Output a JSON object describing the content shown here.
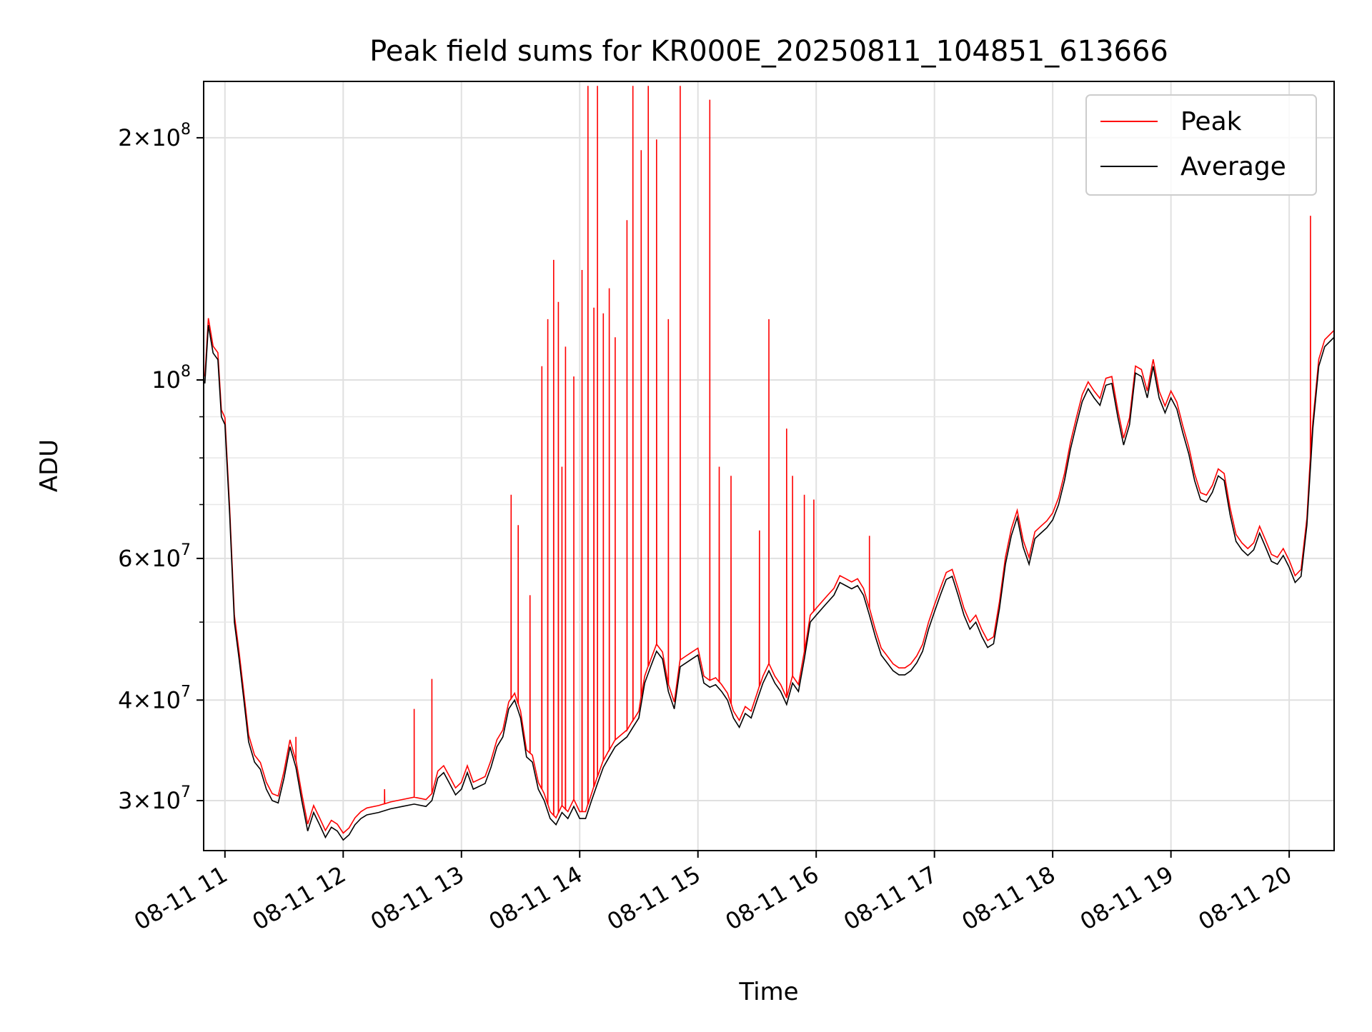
{
  "chart_data": {
    "type": "line",
    "title": "Peak field sums for KR000E_20250811_104851_613666",
    "xlabel": "Time",
    "ylabel": "ADU",
    "yscale": "log",
    "grid": true,
    "legend_position": "top-right",
    "xlim": [
      10.82,
      20.38
    ],
    "ylim": [
      26000000,
      235000000
    ],
    "x_ticks": [
      {
        "value": 11,
        "label": "08-11 11"
      },
      {
        "value": 12,
        "label": "08-11 12"
      },
      {
        "value": 13,
        "label": "08-11 13"
      },
      {
        "value": 14,
        "label": "08-11 14"
      },
      {
        "value": 15,
        "label": "08-11 15"
      },
      {
        "value": 16,
        "label": "08-11 16"
      },
      {
        "value": 17,
        "label": "08-11 17"
      },
      {
        "value": 18,
        "label": "08-11 18"
      },
      {
        "value": 19,
        "label": "08-11 19"
      },
      {
        "value": 20,
        "label": "08-11 20"
      }
    ],
    "y_ticks": [
      {
        "value": 30000000,
        "coef": "3",
        "exp": "7"
      },
      {
        "value": 40000000,
        "coef": "4",
        "exp": "7"
      },
      {
        "value": 60000000,
        "coef": "6",
        "exp": "7"
      },
      {
        "value": 100000000,
        "coef": "",
        "exp": "8"
      },
      {
        "value": 200000000,
        "coef": "2",
        "exp": "8"
      }
    ],
    "y_minor_ticks": [
      50000000,
      70000000,
      80000000,
      90000000
    ],
    "series": [
      {
        "name": "Average",
        "color": "#000000",
        "points": [
          [
            10.83,
            99000000
          ],
          [
            10.86,
            117000000
          ],
          [
            10.9,
            108000000
          ],
          [
            10.94,
            106000000
          ],
          [
            10.97,
            90000000
          ],
          [
            11.0,
            88000000
          ],
          [
            11.04,
            68000000
          ],
          [
            11.08,
            50000000
          ],
          [
            11.12,
            45000000
          ],
          [
            11.16,
            40000000
          ],
          [
            11.2,
            35500000
          ],
          [
            11.25,
            33500000
          ],
          [
            11.3,
            32800000
          ],
          [
            11.35,
            31000000
          ],
          [
            11.4,
            30000000
          ],
          [
            11.45,
            29800000
          ],
          [
            11.5,
            32000000
          ],
          [
            11.55,
            35000000
          ],
          [
            11.6,
            33000000
          ],
          [
            11.65,
            30000000
          ],
          [
            11.7,
            27500000
          ],
          [
            11.75,
            29000000
          ],
          [
            11.8,
            28000000
          ],
          [
            11.85,
            27000000
          ],
          [
            11.9,
            27800000
          ],
          [
            11.95,
            27500000
          ],
          [
            12.0,
            26800000
          ],
          [
            12.05,
            27200000
          ],
          [
            12.1,
            28000000
          ],
          [
            12.15,
            28500000
          ],
          [
            12.2,
            28800000
          ],
          [
            12.3,
            29000000
          ],
          [
            12.4,
            29300000
          ],
          [
            12.5,
            29500000
          ],
          [
            12.6,
            29700000
          ],
          [
            12.7,
            29500000
          ],
          [
            12.75,
            30000000
          ],
          [
            12.8,
            32000000
          ],
          [
            12.85,
            32500000
          ],
          [
            12.9,
            31500000
          ],
          [
            12.95,
            30500000
          ],
          [
            13.0,
            31000000
          ],
          [
            13.05,
            32500000
          ],
          [
            13.1,
            31000000
          ],
          [
            13.2,
            31500000
          ],
          [
            13.25,
            33000000
          ],
          [
            13.3,
            35000000
          ],
          [
            13.35,
            36000000
          ],
          [
            13.4,
            39000000
          ],
          [
            13.45,
            40000000
          ],
          [
            13.5,
            38000000
          ],
          [
            13.55,
            34000000
          ],
          [
            13.6,
            33500000
          ],
          [
            13.65,
            31000000
          ],
          [
            13.7,
            30000000
          ],
          [
            13.75,
            28500000
          ],
          [
            13.8,
            28000000
          ],
          [
            13.85,
            29000000
          ],
          [
            13.9,
            28500000
          ],
          [
            13.95,
            29500000
          ],
          [
            14.0,
            28500000
          ],
          [
            14.05,
            28500000
          ],
          [
            14.1,
            30000000
          ],
          [
            14.15,
            31500000
          ],
          [
            14.2,
            33000000
          ],
          [
            14.25,
            34000000
          ],
          [
            14.3,
            35000000
          ],
          [
            14.35,
            35500000
          ],
          [
            14.4,
            36000000
          ],
          [
            14.45,
            37000000
          ],
          [
            14.5,
            38000000
          ],
          [
            14.55,
            42000000
          ],
          [
            14.6,
            44000000
          ],
          [
            14.65,
            46000000
          ],
          [
            14.7,
            45000000
          ],
          [
            14.75,
            41000000
          ],
          [
            14.8,
            39000000
          ],
          [
            14.85,
            44000000
          ],
          [
            14.9,
            44500000
          ],
          [
            14.95,
            45000000
          ],
          [
            15.0,
            45500000
          ],
          [
            15.05,
            42000000
          ],
          [
            15.1,
            41500000
          ],
          [
            15.15,
            41800000
          ],
          [
            15.2,
            41000000
          ],
          [
            15.25,
            40000000
          ],
          [
            15.3,
            38000000
          ],
          [
            15.35,
            37000000
          ],
          [
            15.4,
            38500000
          ],
          [
            15.45,
            38000000
          ],
          [
            15.5,
            40000000
          ],
          [
            15.55,
            42000000
          ],
          [
            15.6,
            43500000
          ],
          [
            15.65,
            42000000
          ],
          [
            15.7,
            41000000
          ],
          [
            15.75,
            39500000
          ],
          [
            15.8,
            42000000
          ],
          [
            15.85,
            41000000
          ],
          [
            15.9,
            45000000
          ],
          [
            15.95,
            50000000
          ],
          [
            16.0,
            51000000
          ],
          [
            16.05,
            52000000
          ],
          [
            16.1,
            53000000
          ],
          [
            16.15,
            54000000
          ],
          [
            16.2,
            56000000
          ],
          [
            16.25,
            55500000
          ],
          [
            16.3,
            55000000
          ],
          [
            16.35,
            55500000
          ],
          [
            16.4,
            54000000
          ],
          [
            16.45,
            51000000
          ],
          [
            16.5,
            48000000
          ],
          [
            16.55,
            45500000
          ],
          [
            16.6,
            44500000
          ],
          [
            16.65,
            43500000
          ],
          [
            16.7,
            43000000
          ],
          [
            16.75,
            43000000
          ],
          [
            16.8,
            43500000
          ],
          [
            16.85,
            44500000
          ],
          [
            16.9,
            46000000
          ],
          [
            16.95,
            49000000
          ],
          [
            17.0,
            51500000
          ],
          [
            17.05,
            54000000
          ],
          [
            17.1,
            56500000
          ],
          [
            17.15,
            57000000
          ],
          [
            17.2,
            54000000
          ],
          [
            17.25,
            51000000
          ],
          [
            17.3,
            49000000
          ],
          [
            17.35,
            50000000
          ],
          [
            17.4,
            48000000
          ],
          [
            17.45,
            46500000
          ],
          [
            17.5,
            47000000
          ],
          [
            17.55,
            52000000
          ],
          [
            17.6,
            59000000
          ],
          [
            17.65,
            64000000
          ],
          [
            17.7,
            67500000
          ],
          [
            17.75,
            62000000
          ],
          [
            17.8,
            59000000
          ],
          [
            17.85,
            63500000
          ],
          [
            17.9,
            64500000
          ],
          [
            17.95,
            65500000
          ],
          [
            18.0,
            67000000
          ],
          [
            18.05,
            70000000
          ],
          [
            18.1,
            75000000
          ],
          [
            18.15,
            82000000
          ],
          [
            18.2,
            88000000
          ],
          [
            18.25,
            94000000
          ],
          [
            18.3,
            97500000
          ],
          [
            18.35,
            95000000
          ],
          [
            18.4,
            93000000
          ],
          [
            18.45,
            98500000
          ],
          [
            18.5,
            99000000
          ],
          [
            18.55,
            90000000
          ],
          [
            18.6,
            83000000
          ],
          [
            18.65,
            88000000
          ],
          [
            18.7,
            102000000
          ],
          [
            18.75,
            101000000
          ],
          [
            18.8,
            95000000
          ],
          [
            18.85,
            104000000
          ],
          [
            18.9,
            95000000
          ],
          [
            18.95,
            91000000
          ],
          [
            19.0,
            95000000
          ],
          [
            19.05,
            92000000
          ],
          [
            19.1,
            86000000
          ],
          [
            19.15,
            81000000
          ],
          [
            19.2,
            75000000
          ],
          [
            19.25,
            71000000
          ],
          [
            19.3,
            70500000
          ],
          [
            19.35,
            72500000
          ],
          [
            19.4,
            76000000
          ],
          [
            19.45,
            75000000
          ],
          [
            19.5,
            68000000
          ],
          [
            19.55,
            63000000
          ],
          [
            19.6,
            61500000
          ],
          [
            19.65,
            60500000
          ],
          [
            19.7,
            61500000
          ],
          [
            19.75,
            64500000
          ],
          [
            19.8,
            62000000
          ],
          [
            19.85,
            59500000
          ],
          [
            19.9,
            59000000
          ],
          [
            19.95,
            60500000
          ],
          [
            20.0,
            58500000
          ],
          [
            20.05,
            56000000
          ],
          [
            20.1,
            57000000
          ],
          [
            20.15,
            66000000
          ],
          [
            20.2,
            87000000
          ],
          [
            20.25,
            104000000
          ],
          [
            20.3,
            110000000
          ],
          [
            20.38,
            113000000
          ]
        ]
      },
      {
        "name": "Peak",
        "color": "#ff0000",
        "spikes": [
          [
            11.6,
            36000000
          ],
          [
            12.35,
            31000000
          ],
          [
            12.6,
            39000000
          ],
          [
            12.75,
            42500000
          ],
          [
            13.42,
            72000000
          ],
          [
            13.48,
            66000000
          ],
          [
            13.58,
            54000000
          ],
          [
            13.68,
            104000000
          ],
          [
            13.73,
            119000000
          ],
          [
            13.78,
            141000000
          ],
          [
            13.82,
            125000000
          ],
          [
            13.85,
            78000000
          ],
          [
            13.88,
            110000000
          ],
          [
            13.95,
            101000000
          ],
          [
            14.02,
            137000000
          ],
          [
            14.07,
            232000000
          ],
          [
            14.12,
            123000000
          ],
          [
            14.15,
            232000000
          ],
          [
            14.2,
            121000000
          ],
          [
            14.25,
            130000000
          ],
          [
            14.3,
            113000000
          ],
          [
            14.4,
            158000000
          ],
          [
            14.45,
            232000000
          ],
          [
            14.52,
            193000000
          ],
          [
            14.58,
            232000000
          ],
          [
            14.65,
            199000000
          ],
          [
            14.75,
            119000000
          ],
          [
            14.85,
            232000000
          ],
          [
            15.1,
            223000000
          ],
          [
            15.18,
            78000000
          ],
          [
            15.28,
            76000000
          ],
          [
            15.52,
            65000000
          ],
          [
            15.6,
            119000000
          ],
          [
            15.75,
            87000000
          ],
          [
            15.8,
            76000000
          ],
          [
            15.9,
            72000000
          ],
          [
            15.98,
            71000000
          ],
          [
            16.45,
            64000000
          ],
          [
            20.18,
            160000000
          ]
        ]
      }
    ]
  }
}
